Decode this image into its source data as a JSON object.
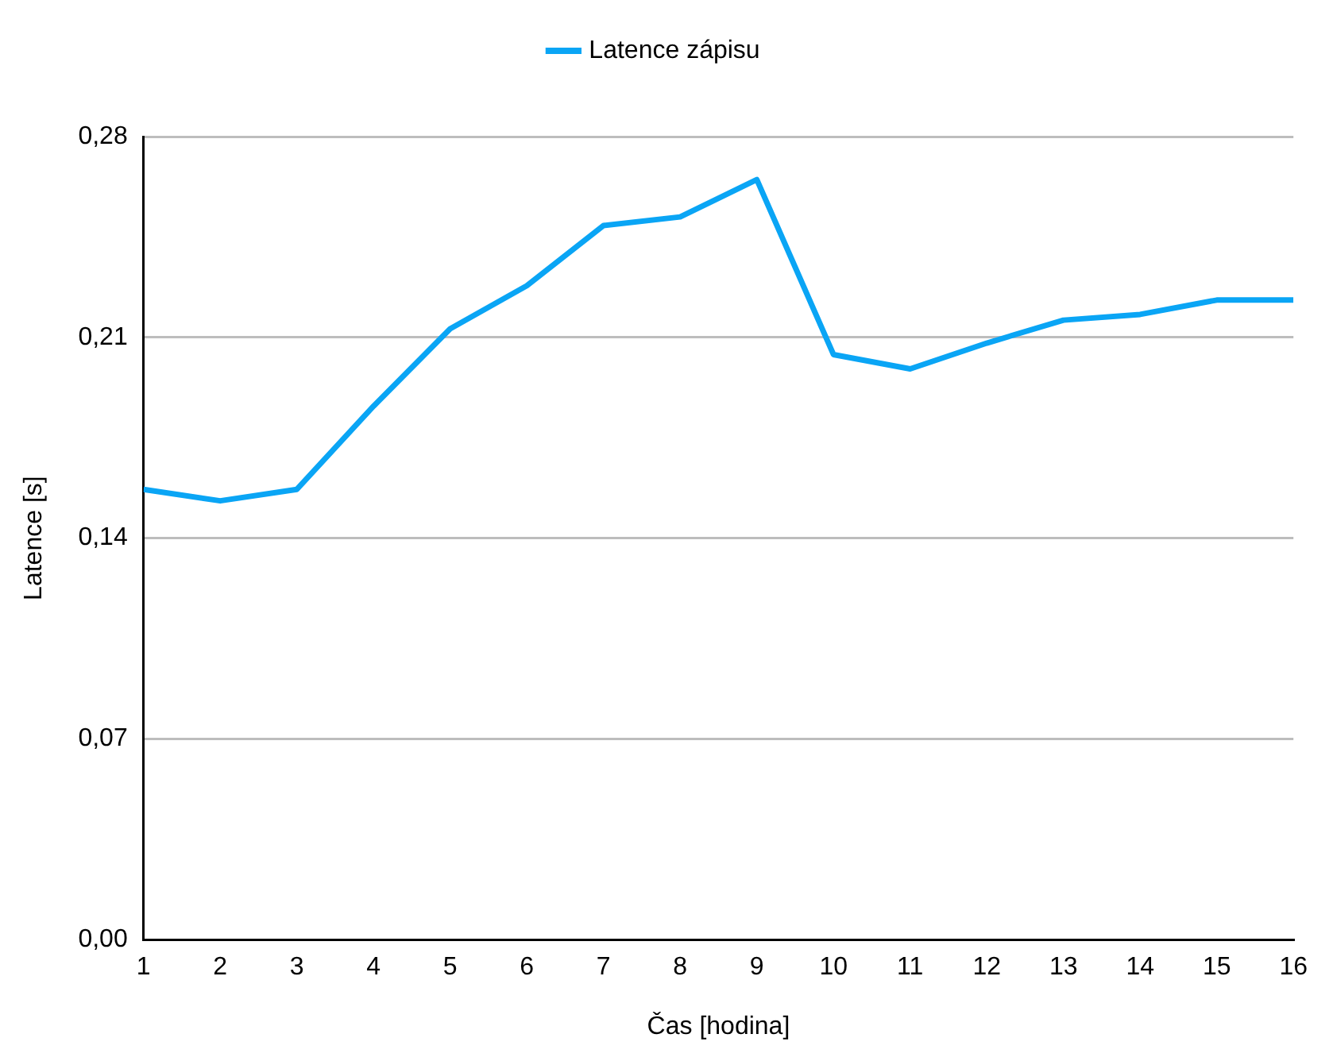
{
  "chart_data": {
    "type": "line",
    "xlabel": "Čas [hodina]",
    "ylabel": "Latence [s]",
    "x": [
      1,
      2,
      3,
      4,
      5,
      6,
      7,
      8,
      9,
      10,
      11,
      12,
      13,
      14,
      15,
      16
    ],
    "series": [
      {
        "name": "Latence zápisu",
        "color": "#0aa5f5",
        "values": [
          0.157,
          0.153,
          0.157,
          0.186,
          0.213,
          0.228,
          0.249,
          0.252,
          0.265,
          0.204,
          0.199,
          0.208,
          0.216,
          0.218,
          0.223,
          0.223
        ]
      }
    ],
    "xlim": [
      1,
      16
    ],
    "xticks": [
      1,
      2,
      3,
      4,
      5,
      6,
      7,
      8,
      9,
      10,
      11,
      12,
      13,
      14,
      15,
      16
    ],
    "ylim": [
      0,
      0.28
    ],
    "yticks": [
      {
        "value": 0,
        "label": "0,00"
      },
      {
        "value": 0.07,
        "label": "0,07"
      },
      {
        "value": 0.14,
        "label": "0,14"
      },
      {
        "value": 0.21,
        "label": "0,21"
      },
      {
        "value": 0.28,
        "label": "0,28"
      }
    ],
    "grid": "y",
    "legend": "top",
    "marker": "none",
    "line_style": "solid"
  }
}
